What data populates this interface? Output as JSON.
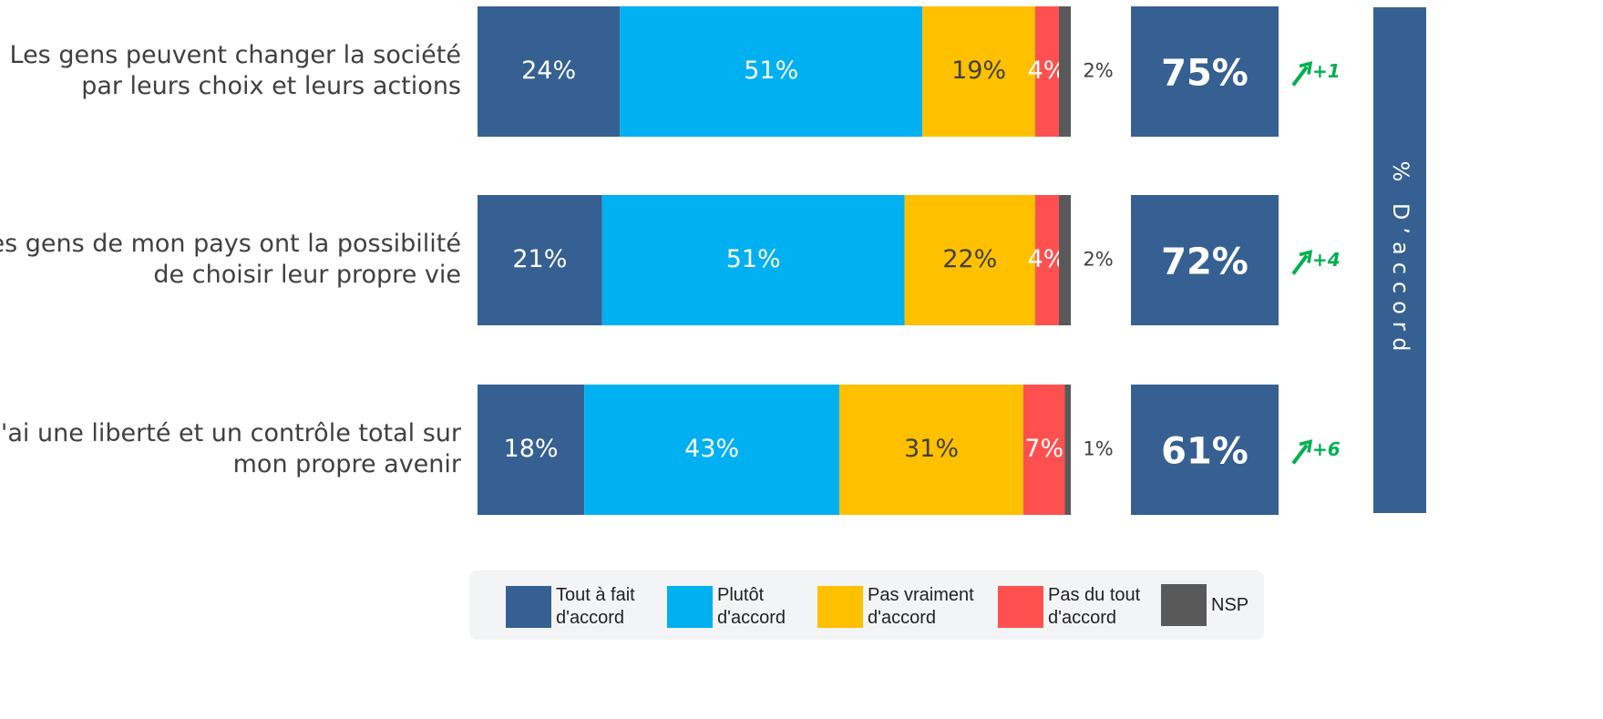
{
  "chart_data": {
    "type": "stacked_bar_horizontal",
    "categories": [
      [
        "Les gens peuvent changer la société",
        "par leurs choix et leurs actions"
      ],
      [
        "Les gens de mon pays ont la possibilité",
        "de choisir leur propre vie"
      ],
      [
        "J'ai une liberté et un contrôle total sur",
        "mon propre avenir"
      ]
    ],
    "xlim": [
      0,
      100
    ],
    "series": [
      {
        "name": "Tout à fait d'accord",
        "color": "#366092",
        "label_color": "#ffffff",
        "values": [
          24,
          21,
          18
        ],
        "value_labels": [
          "24%",
          "21%",
          "18%"
        ]
      },
      {
        "name": "Plutôt d'accord",
        "color": "#00b0f0",
        "label_color": "#ffffff",
        "values": [
          51,
          51,
          43
        ],
        "value_labels": [
          "51%",
          "51%",
          "43%"
        ]
      },
      {
        "name": "Pas vraiment d'accord",
        "color": "#ffc000",
        "label_color": "#404040",
        "values": [
          19,
          22,
          31
        ],
        "value_labels": [
          "19%",
          "22%",
          "31%"
        ]
      },
      {
        "name": "Pas du tout d'accord",
        "color": "#ff5050",
        "label_color": "#ffffff",
        "values": [
          4,
          4,
          7
        ],
        "value_labels": [
          "4%",
          "4%",
          "7%"
        ]
      },
      {
        "name": "NSP",
        "color": "#595959",
        "label_color": "#404040",
        "label_outside": true,
        "values": [
          2,
          2,
          1
        ],
        "value_labels": [
          "2%",
          "2%",
          "1%"
        ]
      }
    ],
    "net": {
      "title": "% D’accord",
      "color": "#366092",
      "values": [
        75,
        72,
        61
      ],
      "value_labels": [
        "75%",
        "72%",
        "61%"
      ]
    },
    "change": {
      "color": "#00b050",
      "values": [
        1,
        4,
        6
      ],
      "value_labels": [
        "+1",
        "+4",
        "+6"
      ]
    }
  }
}
